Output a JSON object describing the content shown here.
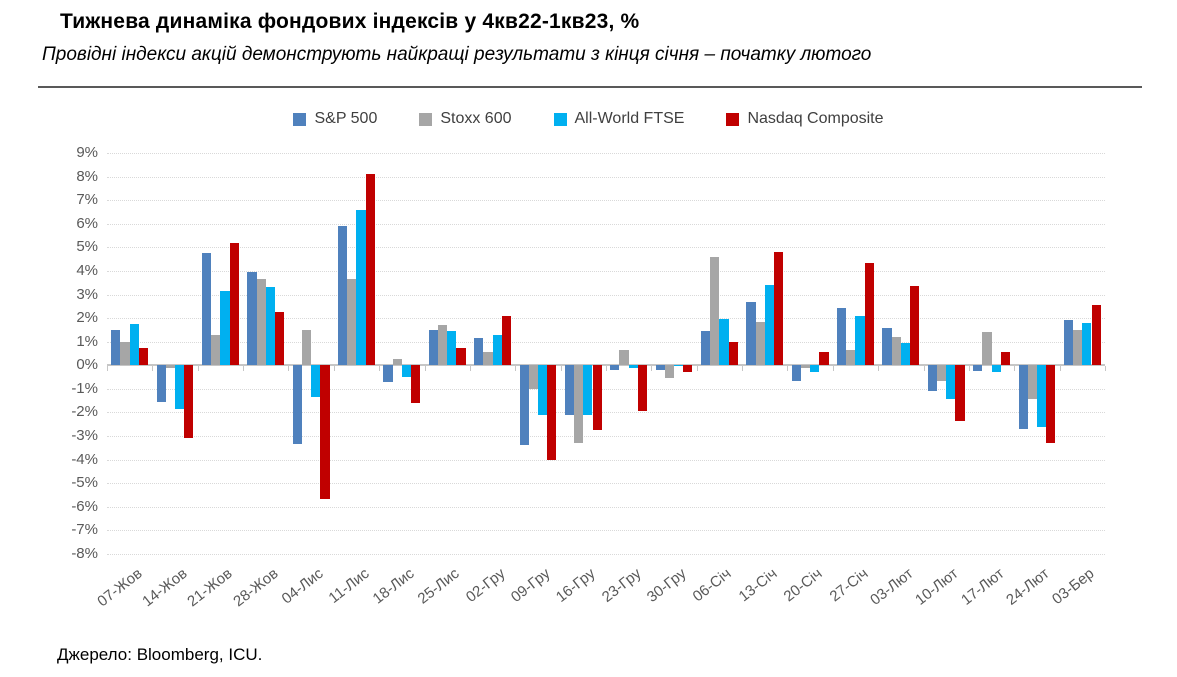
{
  "header": {
    "title": "Тижнева динаміка фондових індексів у 4кв22-1кв23, %",
    "subtitle": "Провідні індекси акцій демонструють найкращі результати з кінця січня – початку лютого"
  },
  "footer": {
    "source": "Джерело: Bloomberg, ICU."
  },
  "chart_data": {
    "type": "bar",
    "title": "Тижнева динаміка фондових індексів у 4кв22-1кв23, %",
    "xlabel": "",
    "ylabel": "",
    "ylim": [
      -8,
      9
    ],
    "ytick_step": 1,
    "ytick_labels": [
      "9%",
      "8%",
      "7%",
      "6%",
      "5%",
      "4%",
      "3%",
      "2%",
      "1%",
      "0%",
      "-1%",
      "-2%",
      "-3%",
      "-4%",
      "-5%",
      "-6%",
      "-7%",
      "-8%"
    ],
    "grid": "horizontal-dotted",
    "legend_position": "top-center",
    "categories": [
      "07-Жов",
      "14-Жов",
      "21-Жов",
      "28-Жов",
      "04-Лис",
      "11-Лис",
      "18-Лис",
      "25-Лис",
      "02-Гру",
      "09-Гру",
      "16-Гру",
      "23-Гру",
      "30-Гру",
      "06-Січ",
      "13-Січ",
      "20-Січ",
      "27-Січ",
      "03-Лют",
      "10-Лют",
      "17-Лют",
      "24-Лют",
      "03-Бер"
    ],
    "series": [
      {
        "name": "S&P 500",
        "color": "#4F81BD",
        "values": [
          1.5,
          -1.55,
          4.75,
          3.95,
          -3.35,
          5.9,
          -0.7,
          1.5,
          1.15,
          -3.4,
          -2.1,
          -0.2,
          -0.2,
          1.45,
          2.7,
          -0.65,
          2.45,
          1.6,
          -1.1,
          -0.25,
          -2.7,
          1.9
        ]
      },
      {
        "name": "Stoxx 600",
        "color": "#A6A6A6",
        "values": [
          1.0,
          -0.1,
          1.3,
          3.65,
          1.5,
          3.65,
          0.25,
          1.7,
          0.55,
          -1.0,
          -3.3,
          0.65,
          -0.55,
          4.6,
          1.85,
          -0.1,
          0.65,
          1.2,
          -0.65,
          1.4,
          -1.45,
          1.5
        ]
      },
      {
        "name": "All-World FTSE",
        "color": "#00B0F0",
        "values": [
          1.75,
          -1.85,
          3.15,
          3.3,
          -1.35,
          6.6,
          -0.5,
          1.45,
          1.3,
          -2.1,
          -2.1,
          -0.1,
          -0.05,
          1.95,
          3.4,
          -0.3,
          2.1,
          0.95,
          -1.45,
          -0.3,
          -2.6,
          1.8
        ]
      },
      {
        "name": "Nasdaq Composite",
        "color": "#C00000",
        "values": [
          0.75,
          -3.1,
          5.2,
          2.25,
          -5.65,
          8.1,
          -1.6,
          0.75,
          2.1,
          -4.0,
          -2.75,
          -1.95,
          -0.3,
          1.0,
          4.8,
          0.55,
          4.35,
          3.35,
          -2.35,
          0.55,
          -3.3,
          2.55
        ]
      }
    ]
  }
}
